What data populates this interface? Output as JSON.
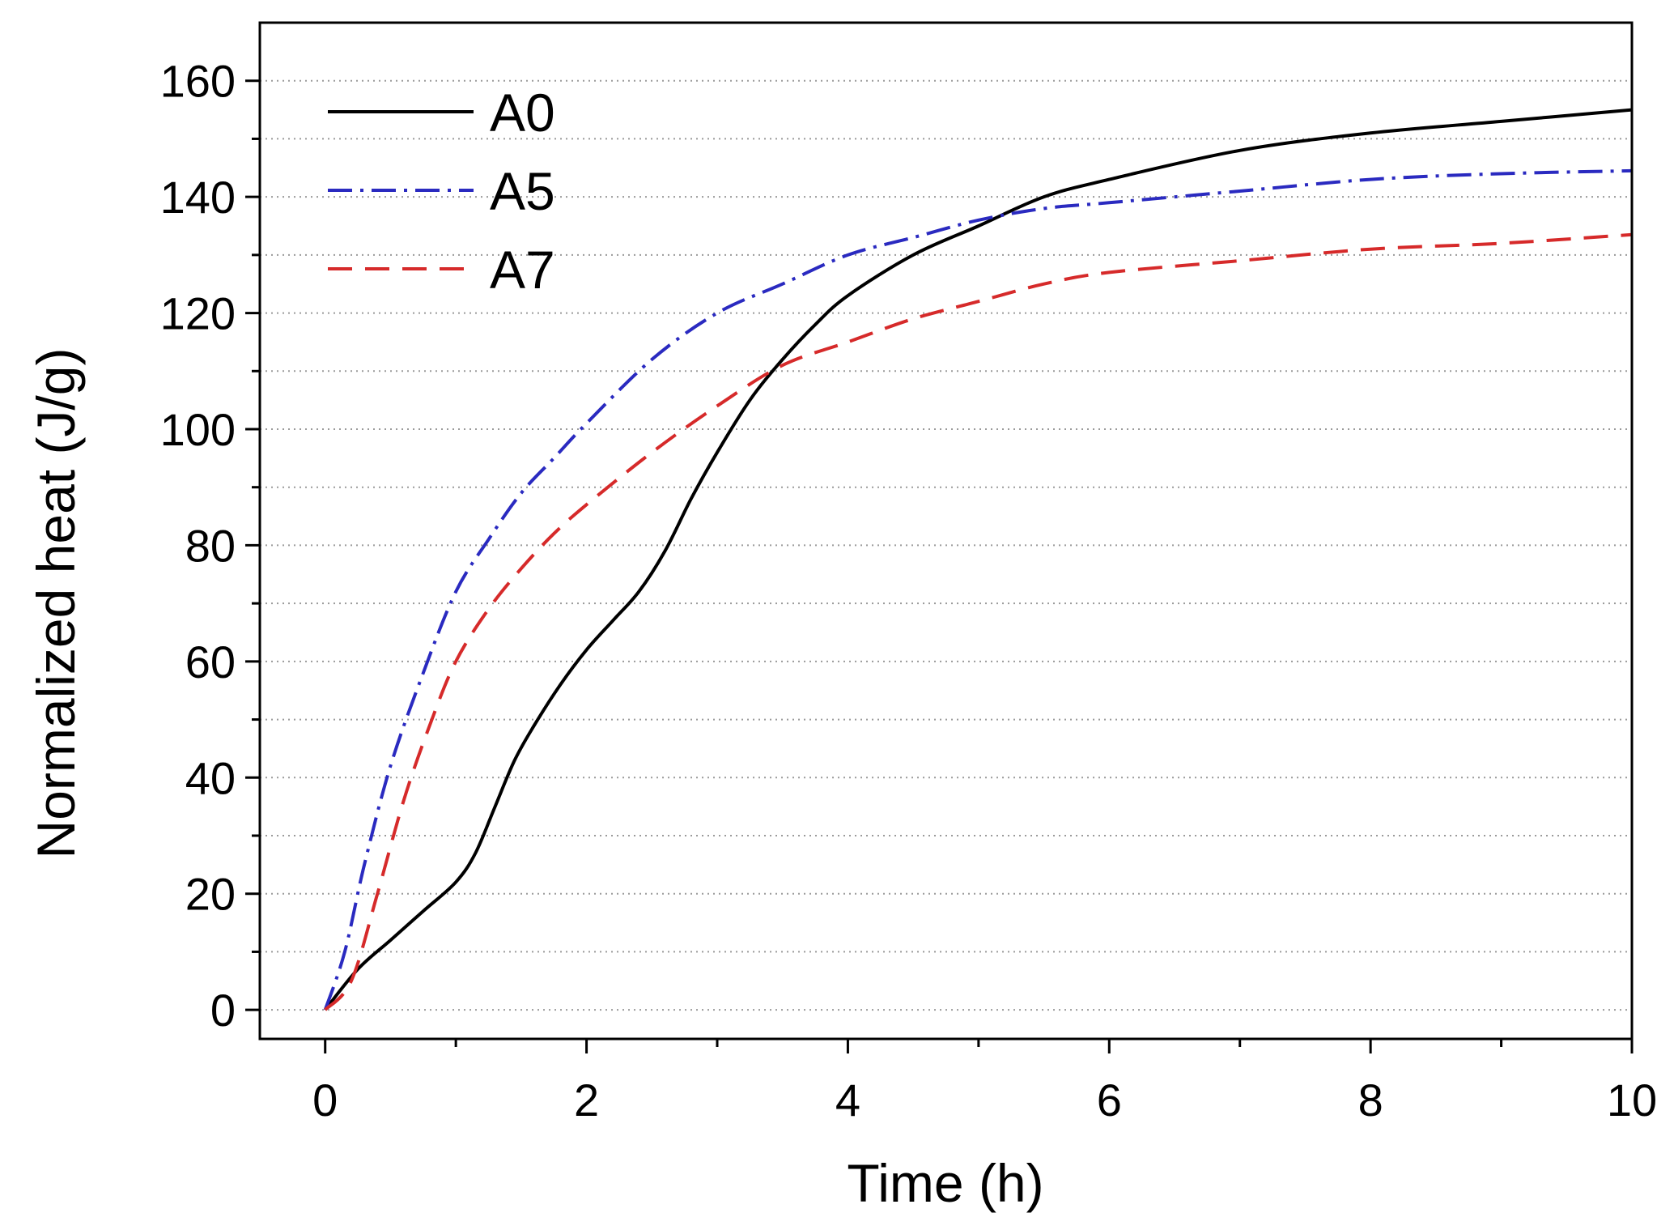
{
  "chart_data": {
    "type": "line",
    "title": "",
    "xlabel": "Time (h)",
    "ylabel": "Normalized heat (J/g)",
    "xlim": [
      -0.5,
      10
    ],
    "ylim": [
      -5,
      170
    ],
    "xticks": [
      0,
      2,
      4,
      6,
      8,
      10
    ],
    "yticks": [
      0,
      20,
      40,
      60,
      80,
      100,
      120,
      140,
      160
    ],
    "grid": "horizontal dotted",
    "legend_position": "top-left",
    "series": [
      {
        "name": "A0",
        "color": "#000000",
        "style": "solid",
        "x": [
          0,
          0.25,
          0.5,
          0.75,
          1.0,
          1.15,
          1.3,
          1.45,
          1.6,
          1.8,
          2.0,
          2.2,
          2.4,
          2.6,
          2.8,
          3.0,
          3.25,
          3.5,
          3.75,
          4.0,
          4.5,
          5.0,
          5.5,
          6.0,
          7.0,
          8.0,
          9.0,
          10.0
        ],
        "y": [
          0,
          7,
          12,
          17,
          22,
          27,
          35,
          43,
          49,
          56,
          62,
          67,
          72,
          79,
          88,
          96,
          105,
          112,
          118,
          123,
          130,
          135,
          140,
          143,
          148,
          151,
          153,
          155
        ]
      },
      {
        "name": "A5",
        "color": "#2a2ac0",
        "style": "dash-dot",
        "x": [
          0,
          0.15,
          0.3,
          0.5,
          0.75,
          1.0,
          1.25,
          1.5,
          1.75,
          2.0,
          2.5,
          3.0,
          3.5,
          4.0,
          4.5,
          5.0,
          5.5,
          6.0,
          7.0,
          8.0,
          9.0,
          10.0
        ],
        "y": [
          0,
          10,
          25,
          42,
          58,
          72,
          81,
          89,
          95,
          101,
          112,
          120,
          125,
          130,
          133,
          136,
          138,
          139,
          141,
          143,
          144,
          144.5
        ]
      },
      {
        "name": "A7",
        "color": "#d62a2a",
        "style": "dashed",
        "x": [
          0,
          0.2,
          0.4,
          0.6,
          0.8,
          1.0,
          1.25,
          1.5,
          1.75,
          2.0,
          2.5,
          3.0,
          3.5,
          4.0,
          4.5,
          5.0,
          5.5,
          6.0,
          7.0,
          8.0,
          9.0,
          10.0
        ],
        "y": [
          0,
          5,
          20,
          36,
          49,
          60,
          69,
          76,
          82,
          87,
          96,
          104,
          111,
          115,
          119,
          122,
          125,
          127,
          129,
          131,
          132,
          133.5
        ]
      }
    ]
  }
}
